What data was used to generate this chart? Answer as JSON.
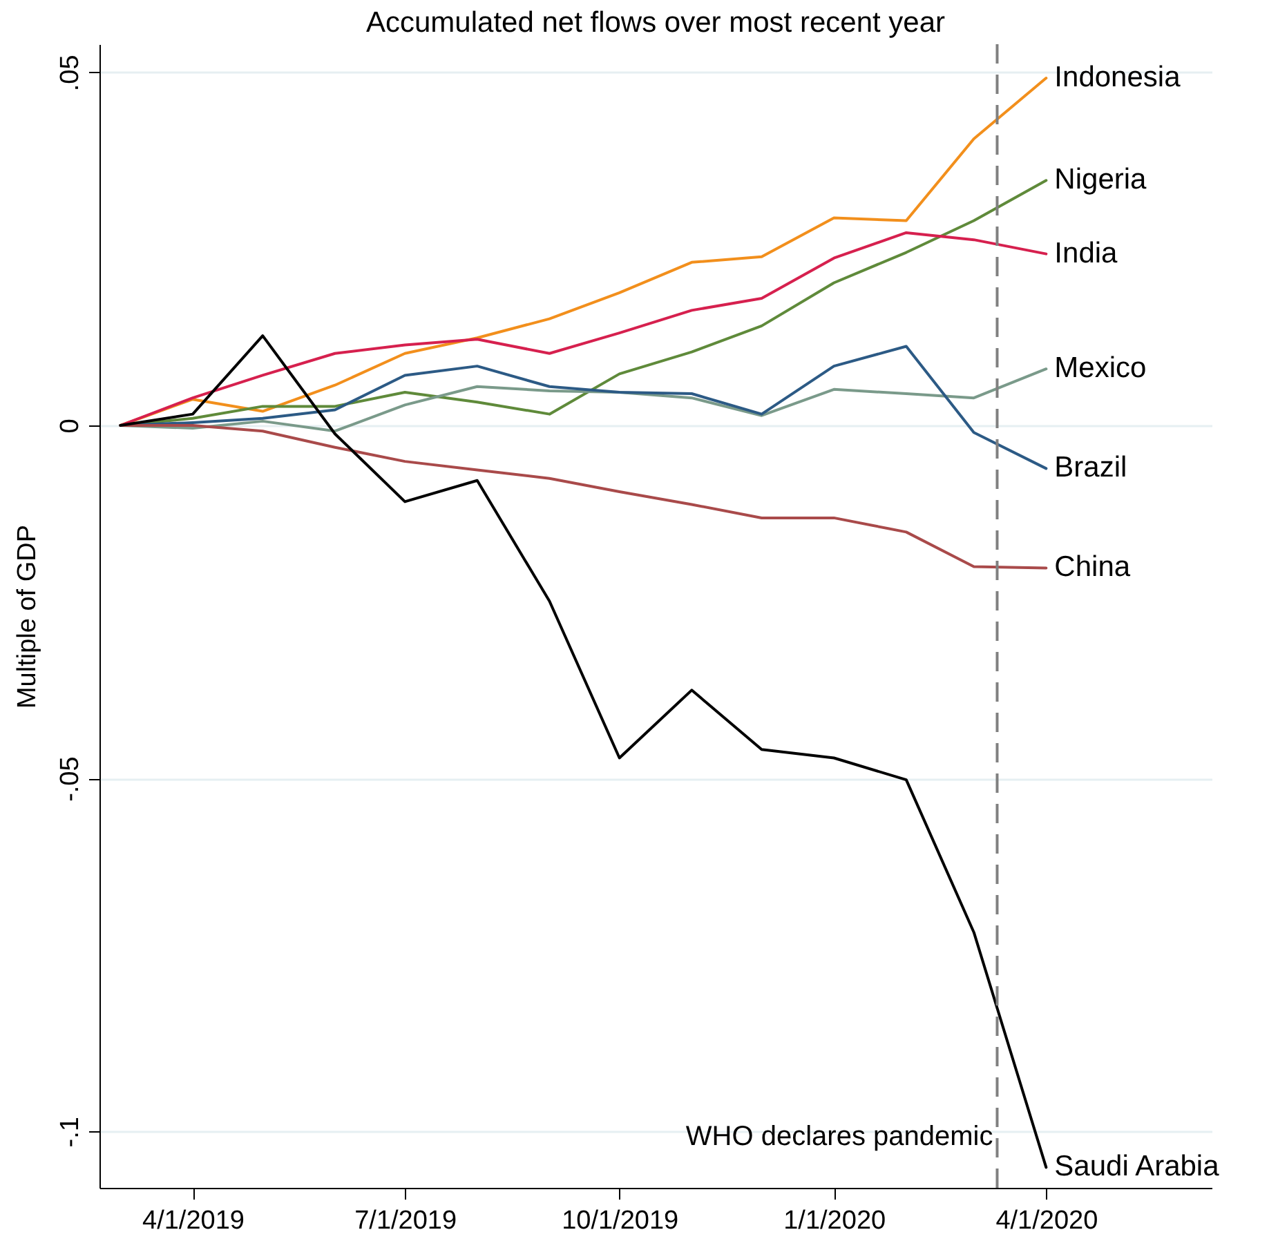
{
  "chart_data": {
    "type": "line",
    "title": "Accumulated net flows over most recent year",
    "ylabel": "Multiple of GDP",
    "x": [
      "2019-03-01",
      "2019-04-01",
      "2019-05-01",
      "2019-06-01",
      "2019-07-01",
      "2019-08-01",
      "2019-09-01",
      "2019-10-01",
      "2019-11-01",
      "2019-12-01",
      "2020-01-01",
      "2020-02-01",
      "2020-03-01",
      "2020-04-01"
    ],
    "series": [
      {
        "name": "Indonesia",
        "color": "#f28f1c",
        "values": [
          0,
          0.0037,
          0.002,
          0.0057,
          0.0102,
          0.0124,
          0.0151,
          0.0188,
          0.0231,
          0.0239,
          0.0294,
          0.029,
          0.0406,
          0.0492
        ]
      },
      {
        "name": "Nigeria",
        "color": "#5f8a3a",
        "values": [
          0,
          0.001,
          0.0027,
          0.0027,
          0.0047,
          0.0033,
          0.0016,
          0.0073,
          0.0104,
          0.0141,
          0.0202,
          0.0245,
          0.029,
          0.0347
        ]
      },
      {
        "name": "India",
        "color": "#d6204e",
        "values": [
          0,
          0.0039,
          0.0071,
          0.0102,
          0.0114,
          0.0122,
          0.0102,
          0.0131,
          0.0163,
          0.018,
          0.0237,
          0.0273,
          0.0263,
          0.0243
        ]
      },
      {
        "name": "Mexico",
        "color": "#7a9a8a",
        "values": [
          0,
          -0.0004,
          0.0006,
          -0.0008,
          0.0029,
          0.0055,
          0.0049,
          0.0047,
          0.0039,
          0.0014,
          0.0051,
          0.0045,
          0.0039,
          0.008
        ]
      },
      {
        "name": "Brazil",
        "color": "#2c5a85",
        "values": [
          0,
          0.0004,
          0.001,
          0.0022,
          0.0071,
          0.0084,
          0.0055,
          0.0047,
          0.0045,
          0.0016,
          0.0084,
          0.0112,
          -0.001,
          -0.0061
        ]
      },
      {
        "name": "China",
        "color": "#a94a4a",
        "values": [
          0,
          0,
          -0.0008,
          -0.0031,
          -0.0051,
          -0.0063,
          -0.0075,
          -0.0094,
          -0.0112,
          -0.0131,
          -0.0131,
          -0.0151,
          -0.02,
          -0.0202
        ]
      },
      {
        "name": "Saudi Arabia",
        "color": "#000000",
        "values": [
          0,
          0.0016,
          0.0127,
          -0.0012,
          -0.0108,
          -0.0078,
          -0.0249,
          -0.0471,
          -0.0375,
          -0.0459,
          -0.0471,
          -0.0502,
          -0.0718,
          -0.1051
        ]
      }
    ],
    "xlim": [
      "2019-02-20",
      "2020-06-11"
    ],
    "xticks": [
      {
        "value": "2019-04-01",
        "label": "4/1/2019"
      },
      {
        "value": "2019-07-01",
        "label": "7/1/2019"
      },
      {
        "value": "2019-10-01",
        "label": "10/1/2019"
      },
      {
        "value": "2020-01-01",
        "label": "1/1/2020"
      },
      {
        "value": "2020-04-01",
        "label": "4/1/2020"
      }
    ],
    "ylim": [
      -0.108,
      0.054
    ],
    "yticks": [
      {
        "value": -0.1,
        "label": "-.1"
      },
      {
        "value": -0.05,
        "label": "-.05"
      },
      {
        "value": 0,
        "label": "0"
      },
      {
        "value": 0.05,
        "label": ".05"
      }
    ],
    "grid": "y",
    "legend": false,
    "ref_lines": [
      {
        "axis": "x",
        "value": "2020-03-11",
        "label": "WHO declares pandemic",
        "color": "#808080",
        "line_style": "dashed"
      }
    ]
  }
}
